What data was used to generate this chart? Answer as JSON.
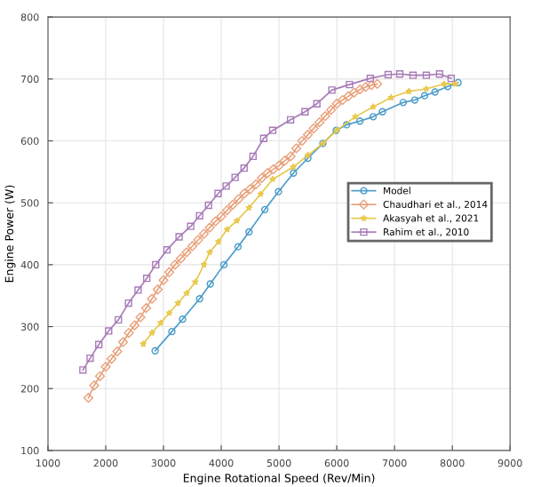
{
  "chart_data": {
    "type": "line",
    "xlabel": "Engine Rotational Speed (Rev/Min)",
    "ylabel": "Engine Power (W)",
    "xlim": [
      1000,
      9000
    ],
    "xticks": [
      1000,
      2000,
      3000,
      4000,
      5000,
      6000,
      7000,
      8000,
      9000
    ],
    "ylim": [
      100,
      800
    ],
    "yticks": [
      100,
      200,
      300,
      400,
      500,
      600,
      700,
      800
    ],
    "grid": true,
    "legend": "right",
    "series": [
      {
        "name": "Model",
        "color": "#4a9cc9",
        "marker": "circle",
        "x": [
          2855,
          3145,
          3330,
          3625,
          3810,
          4046,
          4290,
          4480,
          4754,
          4990,
          5250,
          5500,
          5760,
          5990,
          6170,
          6400,
          6630,
          6790,
          7150,
          7350,
          7520,
          7700,
          7920,
          8100
        ],
        "values": [
          261,
          292,
          312,
          345,
          369,
          400,
          429,
          453,
          489,
          518,
          548,
          572,
          596,
          617,
          626,
          632,
          639,
          647,
          662,
          666,
          673,
          679,
          688,
          694
        ]
      },
      {
        "name": "Chaudhari et al., 2014",
        "color": "#e8a07a",
        "marker": "diamond",
        "x": [
          1700,
          1800,
          1900,
          2000,
          2100,
          2200,
          2300,
          2400,
          2500,
          2600,
          2700,
          2800,
          2900,
          3000,
          3100,
          3200,
          3300,
          3400,
          3500,
          3600,
          3700,
          3800,
          3900,
          4000,
          4100,
          4200,
          4300,
          4400,
          4500,
          4600,
          4700,
          4800,
          4900,
          5000,
          5100,
          5200,
          5300,
          5400,
          5500,
          5600,
          5700,
          5800,
          5900,
          6000,
          6100,
          6200,
          6300,
          6400,
          6500,
          6600,
          6700
        ],
        "values": [
          185,
          205,
          220,
          235,
          248,
          260,
          275,
          290,
          302,
          315,
          330,
          345,
          360,
          375,
          388,
          400,
          410,
          420,
          430,
          440,
          450,
          460,
          470,
          478,
          488,
          497,
          506,
          515,
          522,
          530,
          540,
          548,
          554,
          560,
          568,
          575,
          588,
          600,
          610,
          620,
          630,
          640,
          650,
          660,
          666,
          672,
          678,
          683,
          687,
          690,
          692
        ]
      },
      {
        "name": "Akasyah et al., 2021",
        "color": "#e8c84a",
        "marker": "star",
        "x": [
          2650,
          2800,
          2950,
          3100,
          3250,
          3400,
          3550,
          3700,
          3800,
          3950,
          4100,
          4270,
          4480,
          4680,
          4890,
          5250,
          5500,
          5760,
          6000,
          6320,
          6630,
          6940,
          7250,
          7550,
          7860,
          8050
        ],
        "values": [
          272,
          290,
          306,
          322,
          338,
          354,
          372,
          400,
          420,
          437,
          457,
          471,
          492,
          514,
          538,
          558,
          577,
          596,
          617,
          639,
          655,
          670,
          680,
          684,
          692,
          692
        ]
      },
      {
        "name": "Rahim et al., 2010",
        "color": "#a77bb8",
        "marker": "square",
        "x": [
          1605,
          1730,
          1880,
          2050,
          2220,
          2395,
          2560,
          2710,
          2865,
          3060,
          3270,
          3470,
          3625,
          3780,
          3945,
          4085,
          4240,
          4395,
          4550,
          4735,
          4890,
          5200,
          5450,
          5655,
          5915,
          6220,
          6580,
          6890,
          7090,
          7320,
          7550,
          7780,
          7980
        ],
        "values": [
          230,
          249,
          271,
          293,
          311,
          338,
          359,
          378,
          400,
          424,
          445,
          462,
          479,
          496,
          515,
          527,
          541,
          556,
          575,
          604,
          617,
          634,
          647,
          660,
          682,
          691,
          701,
          707,
          708,
          706,
          706,
          708,
          701
        ]
      }
    ]
  }
}
